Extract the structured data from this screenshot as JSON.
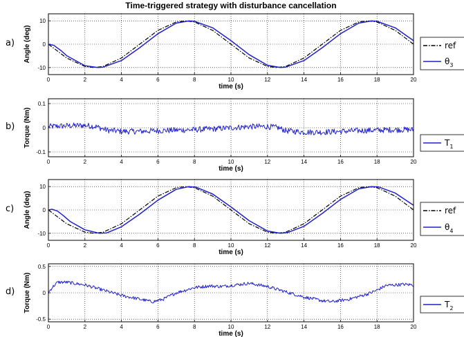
{
  "title": "Time-triggered strategy with disturbance cancellation",
  "colors": {
    "measured": "#1f1fcc",
    "reference": "#000000"
  },
  "chart_data": [
    {
      "type": "line",
      "panel_label": "a)",
      "xlabel": "time (s)",
      "ylabel": "Angle (deg)",
      "xlim": [
        0,
        20
      ],
      "ylim": [
        -13,
        13
      ],
      "xticks": [
        "0",
        "2",
        "4",
        "6",
        "8",
        "10",
        "12",
        "14",
        "16",
        "18",
        "20"
      ],
      "yticks": [
        "10",
        "0",
        "-10"
      ],
      "ytick_values": [
        10,
        0,
        -10
      ],
      "grid": true,
      "legend_position": "right",
      "legend": [
        {
          "name": "ref",
          "style": "dash-dot"
        },
        {
          "name": "θ",
          "sub": "3",
          "style": "solid"
        }
      ],
      "series": [
        {
          "style": "dash-dot",
          "x": [
            0,
            1,
            2,
            2.5,
            3,
            4,
            5,
            6,
            7,
            7.5,
            8,
            9,
            10,
            11,
            12,
            12.5,
            13,
            14,
            15,
            16,
            17,
            17.5,
            18,
            19,
            20
          ],
          "y": [
            0,
            -5.9,
            -9.5,
            -10,
            -9.5,
            -5.9,
            0,
            5.9,
            9.5,
            10,
            9.5,
            5.9,
            0,
            -5.9,
            -9.5,
            -10,
            -9.5,
            -5.9,
            0,
            5.9,
            9.5,
            10,
            9.5,
            5.9,
            0
          ]
        },
        {
          "style": "solid",
          "x": [
            0,
            0.3,
            0.7,
            1,
            2,
            2.7,
            3,
            4,
            5,
            6,
            7,
            7.7,
            8,
            9,
            10,
            11,
            12,
            12.7,
            13,
            14,
            15,
            16,
            17,
            17.7,
            18,
            19,
            20
          ],
          "y": [
            0,
            -0.5,
            -2.8,
            -4.9,
            -9.2,
            -10,
            -9.8,
            -7,
            -1.5,
            4.5,
            9,
            10,
            9.8,
            7,
            1.5,
            -4.5,
            -9,
            -10,
            -9.8,
            -7,
            -1.5,
            4.5,
            9,
            10,
            9.8,
            7,
            1.5
          ]
        }
      ]
    },
    {
      "type": "line",
      "panel_label": "b)",
      "xlabel": "time (s)",
      "ylabel": "Torque (Nm)",
      "xlim": [
        0,
        20
      ],
      "ylim": [
        -0.12,
        0.12
      ],
      "xticks": [
        "0",
        "2",
        "4",
        "6",
        "8",
        "10",
        "12",
        "14",
        "16",
        "18",
        "20"
      ],
      "yticks": [
        "0.1",
        "0",
        "-0.1"
      ],
      "ytick_values": [
        0.1,
        0,
        -0.1
      ],
      "grid": true,
      "legend_position": "right",
      "legend": [
        {
          "name": "T",
          "sub": "1",
          "style": "solid"
        }
      ],
      "series": [
        {
          "style": "solid",
          "noisy": true,
          "noise_amplitude": 0.012,
          "x": [
            0,
            1,
            2,
            2.6,
            3.2,
            4,
            5,
            6,
            7,
            8,
            9,
            10,
            11,
            12,
            12.6,
            13,
            14,
            15,
            16,
            17,
            18,
            19,
            20
          ],
          "y": [
            0.005,
            0.008,
            0.01,
            0.005,
            -0.01,
            -0.015,
            -0.015,
            -0.012,
            -0.01,
            -0.008,
            -0.005,
            0,
            0.005,
            0.005,
            0,
            -0.012,
            -0.018,
            -0.018,
            -0.015,
            -0.012,
            -0.01,
            -0.008,
            -0.008
          ]
        }
      ]
    },
    {
      "type": "line",
      "panel_label": "c)",
      "xlabel": "time (s)",
      "ylabel": "Angle (deg)",
      "xlim": [
        0,
        20
      ],
      "ylim": [
        -13,
        13
      ],
      "xticks": [
        "0",
        "2",
        "4",
        "6",
        "8",
        "10",
        "12",
        "14",
        "16",
        "18",
        "20"
      ],
      "yticks": [
        "10",
        "0",
        "-10"
      ],
      "ytick_values": [
        10,
        0,
        -10
      ],
      "grid": true,
      "legend_position": "right",
      "legend": [
        {
          "name": "ref",
          "style": "dash-dot"
        },
        {
          "name": "θ",
          "sub": "4",
          "style": "solid"
        }
      ],
      "series": [
        {
          "style": "dash-dot",
          "x": [
            0,
            1,
            2,
            2.5,
            3,
            4,
            5,
            6,
            7,
            7.5,
            8,
            9,
            10,
            11,
            12,
            12.5,
            13,
            14,
            15,
            16,
            17,
            17.5,
            18,
            19,
            20
          ],
          "y": [
            0,
            -5.9,
            -9.5,
            -10,
            -9.5,
            -5.9,
            0,
            5.9,
            9.5,
            10,
            9.5,
            5.9,
            0,
            -5.9,
            -9.5,
            -10,
            -9.5,
            -5.9,
            0,
            5.9,
            9.5,
            10,
            9.5,
            5.9,
            0
          ]
        },
        {
          "style": "solid",
          "x": [
            0,
            0.2,
            0.5,
            0.8,
            1.2,
            2,
            2.8,
            3.2,
            4,
            5,
            6,
            7,
            7.7,
            8.1,
            9,
            10,
            11,
            12,
            12.7,
            13.1,
            14,
            15,
            16,
            17,
            17.7,
            18.1,
            19,
            20
          ],
          "y": [
            0,
            0.3,
            -0.5,
            -2.3,
            -5,
            -8.5,
            -10,
            -9.8,
            -7.2,
            -1.8,
            4.2,
            8.8,
            10,
            9.7,
            6.8,
            1.3,
            -4.6,
            -9,
            -10,
            -9.7,
            -7,
            -1.5,
            4.5,
            9,
            10,
            9.8,
            7.2,
            2
          ]
        }
      ]
    },
    {
      "type": "line",
      "panel_label": "d)",
      "xlabel": "time (s)",
      "ylabel": "Torque (Nm)",
      "xlim": [
        0,
        20
      ],
      "ylim": [
        -0.55,
        0.55
      ],
      "xticks": [
        "0",
        "2",
        "4",
        "6",
        "8",
        "10",
        "12",
        "14",
        "16",
        "18",
        "20"
      ],
      "yticks": [
        "0.5",
        "0",
        "-0.5"
      ],
      "ytick_values": [
        0.5,
        0,
        -0.5
      ],
      "grid": true,
      "legend_position": "right",
      "legend": [
        {
          "name": "T",
          "sub": "2",
          "style": "solid"
        }
      ],
      "series": [
        {
          "style": "solid",
          "noisy": true,
          "noise_amplitude": 0.03,
          "x": [
            0,
            0.2,
            0.5,
            1,
            2,
            3,
            4,
            5,
            5.7,
            6.3,
            7,
            8,
            8.8,
            9.5,
            10.5,
            11,
            12,
            13,
            14,
            15,
            15.5,
            16.5,
            17.5,
            18,
            18.5,
            19.5,
            20
          ],
          "y": [
            0,
            0.1,
            0.2,
            0.2,
            0.15,
            0.05,
            -0.05,
            -0.12,
            -0.17,
            -0.12,
            0,
            0.1,
            0.13,
            0.12,
            0.16,
            0.18,
            0.12,
            0.02,
            -0.08,
            -0.15,
            -0.17,
            -0.12,
            -0.02,
            0.05,
            0.14,
            0.16,
            0.15
          ]
        }
      ]
    }
  ]
}
